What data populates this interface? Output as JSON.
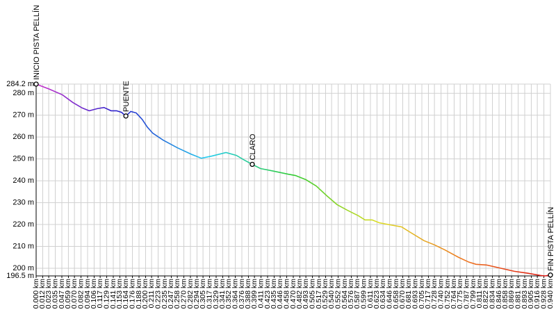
{
  "chart_data": {
    "type": "line",
    "x": [
      0,
      0.023,
      0.048,
      0.067,
      0.084,
      0.097,
      0.112,
      0.124,
      0.137,
      0.147,
      0.156,
      0.164,
      0.173,
      0.183,
      0.194,
      0.203,
      0.213,
      0.232,
      0.258,
      0.283,
      0.302,
      0.321,
      0.347,
      0.366,
      0.381,
      0.395,
      0.41,
      0.436,
      0.461,
      0.474,
      0.493,
      0.512,
      0.531,
      0.55,
      0.569,
      0.589,
      0.601,
      0.614,
      0.627,
      0.646,
      0.668,
      0.684,
      0.709,
      0.728,
      0.747,
      0.772,
      0.791,
      0.804,
      0.823,
      0.846,
      0.874,
      0.899,
      0.922,
      0.93,
      0.94
    ],
    "series": [
      {
        "values": [
          284.2,
          282,
          279.3,
          275.8,
          273.3,
          272,
          273,
          273.5,
          272,
          272,
          271.3,
          269.6,
          271.7,
          271,
          268,
          264.6,
          261.8,
          258.6,
          255.1,
          252.2,
          250.3,
          251.3,
          252.9,
          251.6,
          249.4,
          247.5,
          245.6,
          244.3,
          243,
          242.4,
          240.5,
          237.6,
          233.2,
          229.1,
          226.5,
          224,
          222.1,
          222.1,
          220.8,
          219.9,
          218.9,
          216.4,
          212.6,
          210.7,
          208.4,
          205,
          202.8,
          201.8,
          201.5,
          200.2,
          198.6,
          197.7,
          196.7,
          196.5,
          196.9
        ]
      }
    ],
    "gradient": [
      "#cc33cc",
      "#2222cc",
      "#22ccee",
      "#33cc33",
      "#dddd22",
      "#ee7722",
      "#dd1111"
    ],
    "waypoints": [
      {
        "name": "INICIO PISTA PELLÍN",
        "x": 0,
        "y": 284.2
      },
      {
        "name": "PUENTE",
        "x": 0.164,
        "y": 269.6
      },
      {
        "name": "CLARO",
        "x": 0.395,
        "y": 247.5
      },
      {
        "name": "FIN PISTA PELLÍN",
        "x": 0.94,
        "y": 196.9
      }
    ],
    "xlim": [
      0,
      0.94
    ],
    "ylim": [
      196.5,
      284.2
    ],
    "yticks": [
      {
        "value": 196.5,
        "label": "196.5 m"
      },
      {
        "value": 200,
        "label": "200 m"
      },
      {
        "value": 210,
        "label": "210 m"
      },
      {
        "value": 220,
        "label": "220 m"
      },
      {
        "value": 230,
        "label": "230 m"
      },
      {
        "value": 240,
        "label": "240 m"
      },
      {
        "value": 250,
        "label": "250 m"
      },
      {
        "value": 260,
        "label": "260 m"
      },
      {
        "value": 270,
        "label": "270 m"
      },
      {
        "value": 280,
        "label": "280 m"
      },
      {
        "value": 284.2,
        "label": "284.2 m"
      }
    ],
    "xticks": [
      {
        "value": 0,
        "label": "0.000 km"
      },
      {
        "value": 0.012,
        "label": "0.012 km"
      },
      {
        "value": 0.023,
        "label": "0.023 km"
      },
      {
        "value": 0.035,
        "label": "0.035 km"
      },
      {
        "value": 0.047,
        "label": "0.047 km"
      },
      {
        "value": 0.059,
        "label": "0.059 km"
      },
      {
        "value": 0.07,
        "label": "0.070 km"
      },
      {
        "value": 0.082,
        "label": "0.082 km"
      },
      {
        "value": 0.094,
        "label": "0.094 km"
      },
      {
        "value": 0.106,
        "label": "0.106 km"
      },
      {
        "value": 0.117,
        "label": "0.117 km"
      },
      {
        "value": 0.129,
        "label": "0.129 km"
      },
      {
        "value": 0.141,
        "label": "0.141 km"
      },
      {
        "value": 0.153,
        "label": "0.153 km"
      },
      {
        "value": 0.164,
        "label": "0.164 km"
      },
      {
        "value": 0.176,
        "label": "0.176 km"
      },
      {
        "value": 0.188,
        "label": "0.188 km"
      },
      {
        "value": 0.2,
        "label": "0.200 km"
      },
      {
        "value": 0.211,
        "label": "0.211 km"
      },
      {
        "value": 0.223,
        "label": "0.223 km"
      },
      {
        "value": 0.235,
        "label": "0.235 km"
      },
      {
        "value": 0.247,
        "label": "0.247 km"
      },
      {
        "value": 0.258,
        "label": "0.258 km"
      },
      {
        "value": 0.27,
        "label": "0.270 km"
      },
      {
        "value": 0.282,
        "label": "0.282 km"
      },
      {
        "value": 0.294,
        "label": "0.294 km"
      },
      {
        "value": 0.305,
        "label": "0.305 km"
      },
      {
        "value": 0.317,
        "label": "0.317 km"
      },
      {
        "value": 0.329,
        "label": "0.329 km"
      },
      {
        "value": 0.341,
        "label": "0.341 km"
      },
      {
        "value": 0.352,
        "label": "0.352 km"
      },
      {
        "value": 0.364,
        "label": "0.364 km"
      },
      {
        "value": 0.376,
        "label": "0.376 km"
      },
      {
        "value": 0.388,
        "label": "0.388 km"
      },
      {
        "value": 0.399,
        "label": "0.399 km"
      },
      {
        "value": 0.411,
        "label": "0.411 km"
      },
      {
        "value": 0.423,
        "label": "0.423 km"
      },
      {
        "value": 0.435,
        "label": "0.435 km"
      },
      {
        "value": 0.446,
        "label": "0.446 km"
      },
      {
        "value": 0.458,
        "label": "0.458 km"
      },
      {
        "value": 0.47,
        "label": "0.470 km"
      },
      {
        "value": 0.482,
        "label": "0.482 km"
      },
      {
        "value": 0.493,
        "label": "0.493 km"
      },
      {
        "value": 0.505,
        "label": "0.505 km"
      },
      {
        "value": 0.517,
        "label": "0.517 km"
      },
      {
        "value": 0.529,
        "label": "0.529 km"
      },
      {
        "value": 0.54,
        "label": "0.540 km"
      },
      {
        "value": 0.552,
        "label": "0.552 km"
      },
      {
        "value": 0.564,
        "label": "0.564 km"
      },
      {
        "value": 0.576,
        "label": "0.576 km"
      },
      {
        "value": 0.587,
        "label": "0.587 km"
      },
      {
        "value": 0.599,
        "label": "0.599 km"
      },
      {
        "value": 0.611,
        "label": "0.611 km"
      },
      {
        "value": 0.623,
        "label": "0.623 km"
      },
      {
        "value": 0.634,
        "label": "0.634 km"
      },
      {
        "value": 0.646,
        "label": "0.646 km"
      },
      {
        "value": 0.658,
        "label": "0.658 km"
      },
      {
        "value": 0.67,
        "label": "0.670 km"
      },
      {
        "value": 0.681,
        "label": "0.681 km"
      },
      {
        "value": 0.693,
        "label": "0.693 km"
      },
      {
        "value": 0.705,
        "label": "0.705 km"
      },
      {
        "value": 0.717,
        "label": "0.717 km"
      },
      {
        "value": 0.728,
        "label": "0.728 km"
      },
      {
        "value": 0.74,
        "label": "0.740 km"
      },
      {
        "value": 0.752,
        "label": "0.752 km"
      },
      {
        "value": 0.764,
        "label": "0.764 km"
      },
      {
        "value": 0.775,
        "label": "0.775 km"
      },
      {
        "value": 0.787,
        "label": "0.787 km"
      },
      {
        "value": 0.799,
        "label": "0.799 km"
      },
      {
        "value": 0.811,
        "label": "0.811 km"
      },
      {
        "value": 0.822,
        "label": "0.822 km"
      },
      {
        "value": 0.834,
        "label": "0.834 km"
      },
      {
        "value": 0.846,
        "label": "0.846 km"
      },
      {
        "value": 0.858,
        "label": "0.858 km"
      },
      {
        "value": 0.869,
        "label": "0.869 km"
      },
      {
        "value": 0.881,
        "label": "0.881 km"
      },
      {
        "value": 0.893,
        "label": "0.893 km"
      },
      {
        "value": 0.905,
        "label": "0.905 km"
      },
      {
        "value": 0.916,
        "label": "0.916 km"
      },
      {
        "value": 0.928,
        "label": "0.928 km"
      },
      {
        "value": 0.94,
        "label": "0.940 km"
      }
    ],
    "grid": true
  }
}
